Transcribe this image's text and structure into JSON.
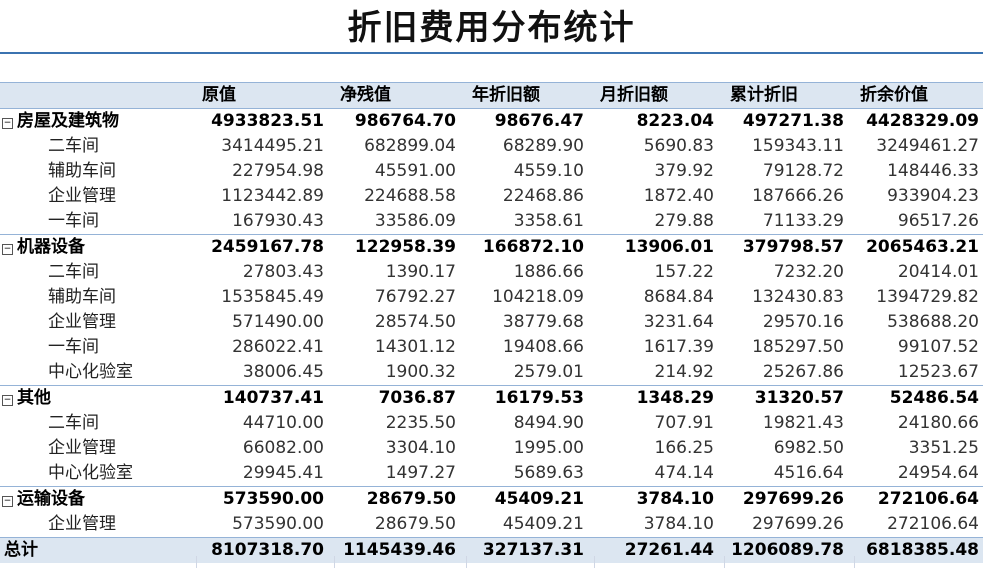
{
  "title": "折旧费用分布统计",
  "headers": [
    "原值",
    "净残值",
    "年折旧额",
    "月折旧额",
    "累计折旧",
    "折余价值"
  ],
  "groups": [
    {
      "name": "房屋及建筑物",
      "values": [
        "4933823.51",
        "986764.70",
        "98676.47",
        "8223.04",
        "497271.38",
        "4428329.09"
      ],
      "children": [
        {
          "name": "二车间",
          "values": [
            "3414495.21",
            "682899.04",
            "68289.90",
            "5690.83",
            "159343.11",
            "3249461.27"
          ]
        },
        {
          "name": "辅助车间",
          "values": [
            "227954.98",
            "45591.00",
            "4559.10",
            "379.92",
            "79128.72",
            "148446.33"
          ]
        },
        {
          "name": "企业管理",
          "values": [
            "1123442.89",
            "224688.58",
            "22468.86",
            "1872.40",
            "187666.26",
            "933904.23"
          ]
        },
        {
          "name": "一车间",
          "values": [
            "167930.43",
            "33586.09",
            "3358.61",
            "279.88",
            "71133.29",
            "96517.26"
          ]
        }
      ]
    },
    {
      "name": "机器设备",
      "values": [
        "2459167.78",
        "122958.39",
        "166872.10",
        "13906.01",
        "379798.57",
        "2065463.21"
      ],
      "children": [
        {
          "name": "二车间",
          "values": [
            "27803.43",
            "1390.17",
            "1886.66",
            "157.22",
            "7232.20",
            "20414.01"
          ]
        },
        {
          "name": "辅助车间",
          "values": [
            "1535845.49",
            "76792.27",
            "104218.09",
            "8684.84",
            "132430.83",
            "1394729.82"
          ]
        },
        {
          "name": "企业管理",
          "values": [
            "571490.00",
            "28574.50",
            "38779.68",
            "3231.64",
            "29570.16",
            "538688.20"
          ]
        },
        {
          "name": "一车间",
          "values": [
            "286022.41",
            "14301.12",
            "19408.66",
            "1617.39",
            "185297.50",
            "99107.52"
          ]
        },
        {
          "name": "中心化验室",
          "values": [
            "38006.45",
            "1900.32",
            "2579.01",
            "214.92",
            "25267.86",
            "12523.67"
          ]
        }
      ]
    },
    {
      "name": "其他",
      "values": [
        "140737.41",
        "7036.87",
        "16179.53",
        "1348.29",
        "31320.57",
        "52486.54"
      ],
      "children": [
        {
          "name": "二车间",
          "values": [
            "44710.00",
            "2235.50",
            "8494.90",
            "707.91",
            "19821.43",
            "24180.66"
          ]
        },
        {
          "name": "企业管理",
          "values": [
            "66082.00",
            "3304.10",
            "1995.00",
            "166.25",
            "6982.50",
            "3351.25"
          ]
        },
        {
          "name": "中心化验室",
          "values": [
            "29945.41",
            "1497.27",
            "5689.63",
            "474.14",
            "4516.64",
            "24954.64"
          ]
        }
      ]
    },
    {
      "name": "运输设备",
      "values": [
        "573590.00",
        "28679.50",
        "45409.21",
        "3784.10",
        "297699.26",
        "272106.64"
      ],
      "children": [
        {
          "name": "企业管理",
          "values": [
            "573590.00",
            "28679.50",
            "45409.21",
            "3784.10",
            "297699.26",
            "272106.64"
          ]
        }
      ]
    }
  ],
  "total": {
    "name": "总计",
    "values": [
      "8107318.70",
      "1145439.46",
      "327137.31",
      "27261.44",
      "1206089.78",
      "6818385.48"
    ]
  },
  "collapse_glyph": "−"
}
